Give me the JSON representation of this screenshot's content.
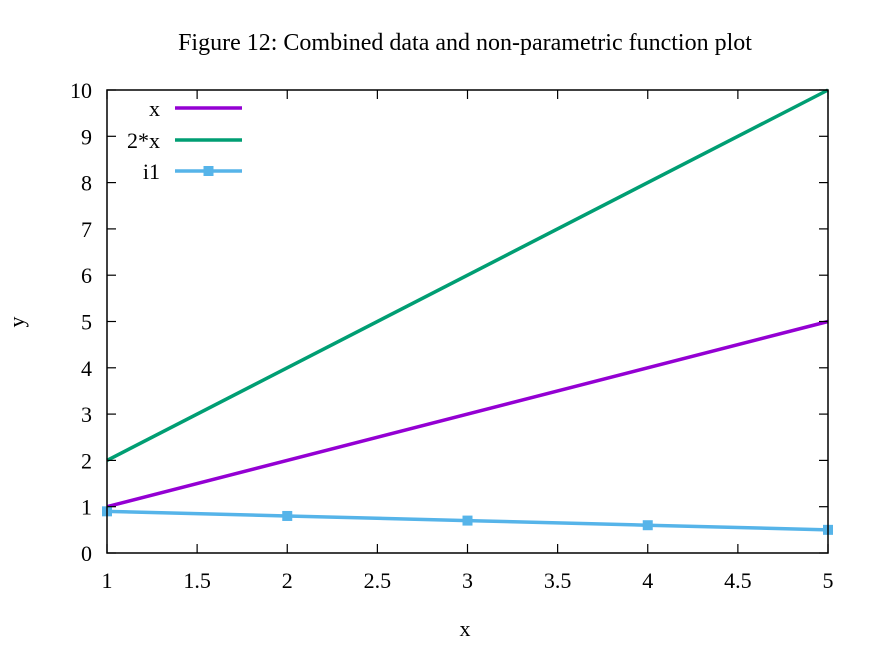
{
  "chart_data": {
    "type": "line",
    "title": "Figure 12: Combined data and non-parametric function plot",
    "xlabel": "x",
    "ylabel": "y",
    "xlim": [
      1,
      5
    ],
    "ylim": [
      0,
      10
    ],
    "xticks": [
      1,
      1.5,
      2,
      2.5,
      3,
      3.5,
      4,
      4.5,
      5
    ],
    "yticks": [
      0,
      1,
      2,
      3,
      4,
      5,
      6,
      7,
      8,
      9,
      10
    ],
    "grid": false,
    "legend": "top-left",
    "series": [
      {
        "name": "x",
        "color": "#9400d3",
        "marker": "none",
        "x": [
          1,
          5
        ],
        "y": [
          1,
          5
        ]
      },
      {
        "name": "2*x",
        "color": "#009e73",
        "marker": "none",
        "x": [
          1,
          5
        ],
        "y": [
          2,
          10
        ]
      },
      {
        "name": "i1",
        "color": "#56b4e9",
        "marker": "square",
        "x": [
          1,
          2,
          3,
          4,
          5
        ],
        "y": [
          0.9,
          0.8,
          0.7,
          0.6,
          0.5
        ]
      }
    ]
  }
}
